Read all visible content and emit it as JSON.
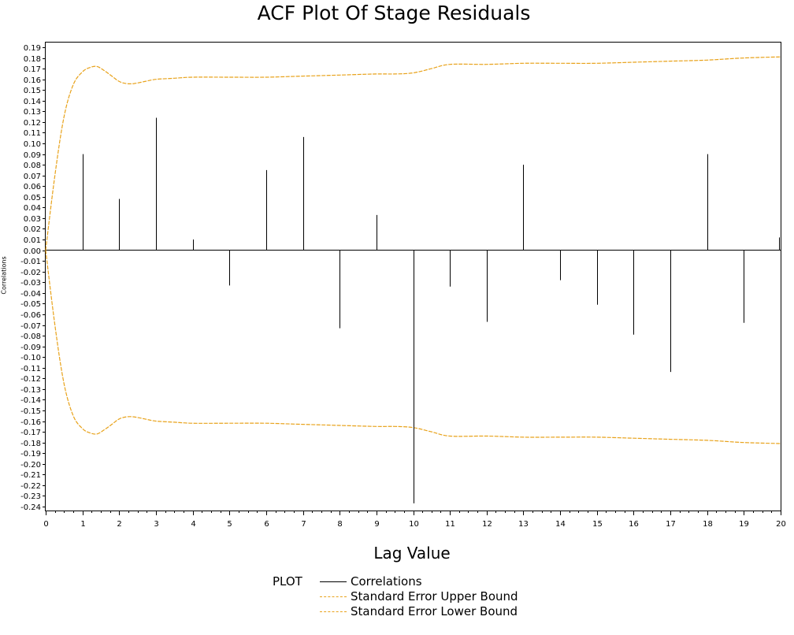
{
  "chart_data": {
    "type": "bar",
    "title": "ACF Plot Of Stage Residuals",
    "xlabel": "Lag Value",
    "ylabel": "Correlations",
    "xlim": [
      0,
      20
    ],
    "ylim": [
      -0.245,
      0.195
    ],
    "x_ticks": [
      0,
      1,
      2,
      3,
      4,
      5,
      6,
      7,
      8,
      9,
      10,
      11,
      12,
      13,
      14,
      15,
      16,
      17,
      18,
      19,
      20
    ],
    "y_ticks": [
      0.19,
      0.18,
      0.17,
      0.16,
      0.15,
      0.14,
      0.13,
      0.12,
      0.11,
      0.1,
      0.09,
      0.08,
      0.07,
      0.06,
      0.05,
      0.04,
      0.03,
      0.02,
      0.01,
      0.0,
      -0.01,
      -0.02,
      -0.03,
      -0.04,
      -0.05,
      -0.06,
      -0.07,
      -0.08,
      -0.09,
      -0.1,
      -0.11,
      -0.12,
      -0.13,
      -0.14,
      -0.15,
      -0.16,
      -0.17,
      -0.18,
      -0.19,
      -0.2,
      -0.21,
      -0.22,
      -0.23,
      -0.24
    ],
    "legend_title": "PLOT",
    "legend_position": "bottom",
    "series": [
      {
        "name": "Correlations",
        "color": "#000000",
        "x": [
          1,
          2,
          3,
          4,
          5,
          6,
          7,
          8,
          9,
          10,
          11,
          12,
          13,
          14,
          15,
          16,
          17,
          18,
          19,
          20
        ],
        "values": [
          0.09,
          0.048,
          0.124,
          0.01,
          -0.033,
          0.075,
          0.106,
          -0.073,
          0.033,
          -0.237,
          -0.034,
          -0.067,
          0.08,
          -0.028,
          -0.051,
          -0.079,
          -0.114,
          0.09,
          -0.068,
          0.012
        ]
      },
      {
        "name": "Standard Error Upper Bound",
        "color": "#E8A21A",
        "x": [
          0,
          0.25,
          0.5,
          0.75,
          1,
          1.2,
          1.4,
          1.6,
          1.8,
          2,
          2.2,
          2.4,
          2.7,
          3,
          3.5,
          4,
          5,
          6,
          7,
          8,
          9,
          9.5,
          10,
          10.5,
          11,
          12,
          13,
          14,
          15,
          16,
          17,
          18,
          19,
          20
        ],
        "values": [
          0,
          0.07,
          0.125,
          0.155,
          0.167,
          0.171,
          0.172,
          0.168,
          0.163,
          0.158,
          0.156,
          0.156,
          0.158,
          0.16,
          0.161,
          0.162,
          0.162,
          0.162,
          0.163,
          0.164,
          0.165,
          0.165,
          0.166,
          0.17,
          0.174,
          0.174,
          0.175,
          0.175,
          0.175,
          0.176,
          0.177,
          0.178,
          0.18,
          0.181
        ]
      },
      {
        "name": "Standard Error Lower Bound",
        "color": "#E8A21A",
        "x": [
          0,
          0.25,
          0.5,
          0.75,
          1,
          1.2,
          1.4,
          1.6,
          1.8,
          2,
          2.2,
          2.4,
          2.7,
          3,
          3.5,
          4,
          5,
          6,
          7,
          8,
          9,
          9.5,
          10,
          10.5,
          11,
          12,
          13,
          14,
          15,
          16,
          17,
          18,
          19,
          20
        ],
        "values": [
          0,
          -0.07,
          -0.125,
          -0.155,
          -0.167,
          -0.171,
          -0.172,
          -0.168,
          -0.163,
          -0.158,
          -0.156,
          -0.156,
          -0.158,
          -0.16,
          -0.161,
          -0.162,
          -0.162,
          -0.162,
          -0.163,
          -0.164,
          -0.165,
          -0.165,
          -0.166,
          -0.17,
          -0.174,
          -0.174,
          -0.175,
          -0.175,
          -0.175,
          -0.176,
          -0.177,
          -0.178,
          -0.18,
          -0.181
        ]
      }
    ]
  }
}
